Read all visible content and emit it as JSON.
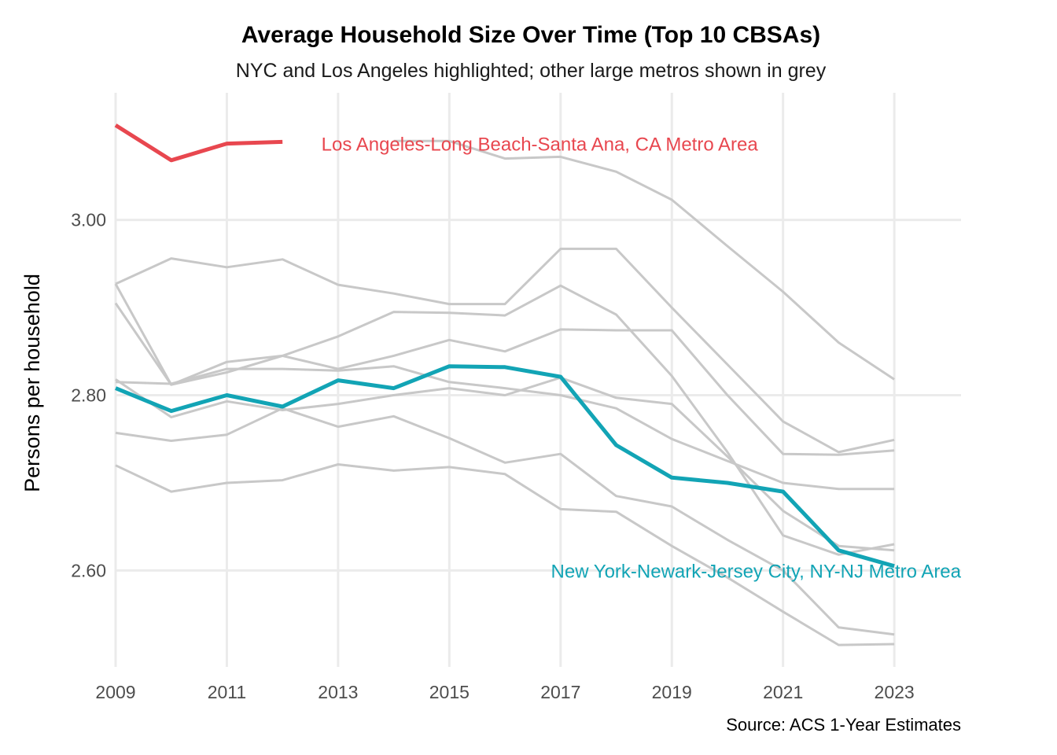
{
  "colors": {
    "la": "#e8474f",
    "nyc": "#12a4b5",
    "other": "#c8c8c8",
    "grid": "#ebebeb"
  },
  "chart_data": {
    "type": "line",
    "title": "Average Household Size Over Time (Top 10 CBSAs)",
    "subtitle": "NYC and Los Angeles highlighted; other large metros shown in grey",
    "xlabel": "",
    "ylabel": "Persons per household",
    "caption": "Source: ACS 1-Year Estimates",
    "xlim": [
      2009,
      2024.2
    ],
    "ylim": [
      2.49,
      3.145
    ],
    "x_ticks": [
      2009,
      2011,
      2013,
      2015,
      2017,
      2019,
      2021,
      2023
    ],
    "y_ticks": [
      2.6,
      2.8,
      3.0
    ],
    "y_tick_labels": [
      "2.60",
      "2.80",
      "3.00"
    ],
    "grid": true,
    "legend": "none (direct labels)",
    "highlighted_series": [
      {
        "name": "Los Angeles-Long Beach-Santa Ana, CA Metro Area",
        "color_key": "la",
        "x": [
          2009,
          2010,
          2011,
          2012
        ],
        "values": [
          3.108,
          3.068,
          3.087,
          3.089
        ],
        "label_x": 2012.7,
        "label_y": 3.087,
        "label_anchor": "start"
      },
      {
        "name": "New York-Newark-Jersey City, NY-NJ Metro Area",
        "color_key": "nyc",
        "x": [
          2009,
          2010,
          2011,
          2012,
          2013,
          2014,
          2015,
          2016,
          2017,
          2018,
          2019,
          2020,
          2021,
          2022,
          2023
        ],
        "values": [
          2.808,
          2.782,
          2.8,
          2.787,
          2.817,
          2.808,
          2.833,
          2.832,
          2.821,
          2.743,
          2.706,
          2.7,
          2.69,
          2.623,
          2.605
        ],
        "label_x": 2024.2,
        "label_y": 2.6,
        "label_anchor": "end"
      }
    ],
    "other_series": [
      {
        "x": [
          2014,
          2015,
          2016,
          2017,
          2018,
          2019,
          2020,
          2021,
          2022,
          2023
        ],
        "values": [
          3.09,
          3.09,
          3.07,
          3.072,
          3.055,
          3.023,
          2.97,
          2.918,
          2.86,
          2.818
        ]
      },
      {
        "x": [
          2009,
          2010,
          2011,
          2012,
          2013,
          2014,
          2015,
          2016,
          2017,
          2018,
          2019,
          2020,
          2021,
          2022,
          2023
        ],
        "values": [
          2.927,
          2.956,
          2.946,
          2.955,
          2.926,
          2.916,
          2.904,
          2.904,
          2.967,
          2.967,
          2.9,
          2.835,
          2.77,
          2.735,
          2.749
        ]
      },
      {
        "x": [
          2009,
          2010,
          2011,
          2012,
          2013,
          2014,
          2015,
          2016,
          2017,
          2018,
          2019,
          2020,
          2021,
          2022,
          2023
        ],
        "values": [
          2.927,
          2.812,
          2.826,
          2.845,
          2.867,
          2.895,
          2.894,
          2.891,
          2.925,
          2.892,
          2.822,
          2.735,
          2.64,
          2.618,
          2.63
        ]
      },
      {
        "x": [
          2009,
          2010,
          2011,
          2012,
          2013,
          2014,
          2015,
          2016,
          2017,
          2018,
          2019,
          2020,
          2021,
          2022,
          2023
        ],
        "values": [
          2.905,
          2.812,
          2.838,
          2.845,
          2.83,
          2.845,
          2.863,
          2.85,
          2.875,
          2.874,
          2.874,
          2.8,
          2.733,
          2.732,
          2.737
        ]
      },
      {
        "x": [
          2009,
          2010,
          2011,
          2012,
          2013,
          2014,
          2015,
          2016,
          2017,
          2018,
          2019,
          2020,
          2021,
          2022,
          2023
        ],
        "values": [
          2.815,
          2.813,
          2.83,
          2.83,
          2.828,
          2.833,
          2.815,
          2.808,
          2.8,
          2.785,
          2.75,
          2.725,
          2.7,
          2.693,
          2.693
        ]
      },
      {
        "x": [
          2009,
          2010,
          2011,
          2012,
          2013,
          2014,
          2015,
          2016,
          2017,
          2018,
          2019,
          2020,
          2021,
          2022,
          2023
        ],
        "values": [
          2.818,
          2.775,
          2.793,
          2.783,
          2.79,
          2.8,
          2.808,
          2.8,
          2.82,
          2.797,
          2.79,
          2.73,
          2.668,
          2.628,
          2.623
        ]
      },
      {
        "x": [
          2009,
          2010,
          2011,
          2012,
          2013,
          2014,
          2015,
          2016,
          2017,
          2018,
          2019,
          2020,
          2021,
          2022,
          2023
        ],
        "values": [
          2.757,
          2.748,
          2.755,
          2.785,
          2.764,
          2.776,
          2.751,
          2.723,
          2.733,
          2.685,
          2.673,
          2.635,
          2.6,
          2.535,
          2.527
        ]
      },
      {
        "x": [
          2009,
          2010,
          2011,
          2012,
          2013,
          2014,
          2015,
          2016,
          2017,
          2018,
          2019,
          2020,
          2021,
          2022,
          2023
        ],
        "values": [
          2.72,
          2.69,
          2.7,
          2.703,
          2.721,
          2.714,
          2.718,
          2.71,
          2.67,
          2.667,
          2.628,
          2.592,
          2.553,
          2.515,
          2.516
        ]
      }
    ]
  }
}
